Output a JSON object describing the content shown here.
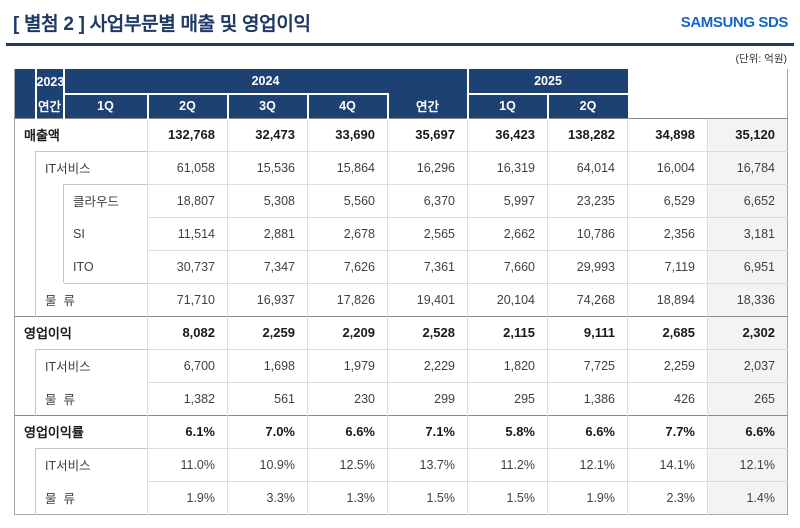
{
  "page": {
    "title": "[ 별첨 2 ]  사업부문별 매출 및 영업이익",
    "logo": "SAMSUNG SDS",
    "unit_note": "(단위: 억원)"
  },
  "colors": {
    "header_navy": "#1e4174",
    "title_navy": "#1f3864",
    "logo_blue": "#1565c8",
    "highlight_column_bg": "#f3f3f3"
  },
  "table": {
    "col_groups": [
      {
        "label": "2023",
        "sub": [
          "연간"
        ]
      },
      {
        "label": "2024",
        "sub": [
          "1Q",
          "2Q",
          "3Q",
          "4Q",
          "연간"
        ]
      },
      {
        "label": "2025",
        "sub": [
          "1Q",
          "2Q"
        ]
      }
    ],
    "rows": [
      {
        "label": "매출액",
        "level": 0,
        "bold": true,
        "values": [
          "132,768",
          "32,473",
          "33,690",
          "35,697",
          "36,423",
          "138,282",
          "34,898",
          "35,120"
        ]
      },
      {
        "label": "IT서비스",
        "level": 1,
        "bold": false,
        "values": [
          "61,058",
          "15,536",
          "15,864",
          "16,296",
          "16,319",
          "64,014",
          "16,004",
          "16,784"
        ]
      },
      {
        "label": "클라우드",
        "level": 2,
        "bold": false,
        "values": [
          "18,807",
          "5,308",
          "5,560",
          "6,370",
          "5,997",
          "23,235",
          "6,529",
          "6,652"
        ]
      },
      {
        "label": "SI",
        "level": 2,
        "bold": false,
        "values": [
          "11,514",
          "2,881",
          "2,678",
          "2,565",
          "2,662",
          "10,786",
          "2,356",
          "3,181"
        ]
      },
      {
        "label": "ITO",
        "level": 2,
        "bold": false,
        "values": [
          "30,737",
          "7,347",
          "7,626",
          "7,361",
          "7,660",
          "29,993",
          "7,119",
          "6,951"
        ]
      },
      {
        "label": "물  류",
        "level": 1,
        "bold": false,
        "values": [
          "71,710",
          "16,937",
          "17,826",
          "19,401",
          "20,104",
          "74,268",
          "18,894",
          "18,336"
        ]
      },
      {
        "label": "영업이익",
        "level": 0,
        "bold": true,
        "values": [
          "8,082",
          "2,259",
          "2,209",
          "2,528",
          "2,115",
          "9,111",
          "2,685",
          "2,302"
        ]
      },
      {
        "label": "IT서비스",
        "level": 1,
        "bold": false,
        "values": [
          "6,700",
          "1,698",
          "1,979",
          "2,229",
          "1,820",
          "7,725",
          "2,259",
          "2,037"
        ]
      },
      {
        "label": "물  류",
        "level": 1,
        "bold": false,
        "values": [
          "1,382",
          "561",
          "230",
          "299",
          "295",
          "1,386",
          "426",
          "265"
        ]
      },
      {
        "label": "영업이익률",
        "level": 0,
        "bold": true,
        "values": [
          "6.1%",
          "7.0%",
          "6.6%",
          "7.1%",
          "5.8%",
          "6.6%",
          "7.7%",
          "6.6%"
        ]
      },
      {
        "label": "IT서비스",
        "level": 1,
        "bold": false,
        "values": [
          "11.0%",
          "10.9%",
          "12.5%",
          "13.7%",
          "11.2%",
          "12.1%",
          "14.1%",
          "12.1%"
        ]
      },
      {
        "label": "물  류",
        "level": 1,
        "bold": false,
        "values": [
          "1.9%",
          "3.3%",
          "1.3%",
          "1.5%",
          "1.5%",
          "1.9%",
          "2.3%",
          "1.4%"
        ]
      }
    ]
  }
}
